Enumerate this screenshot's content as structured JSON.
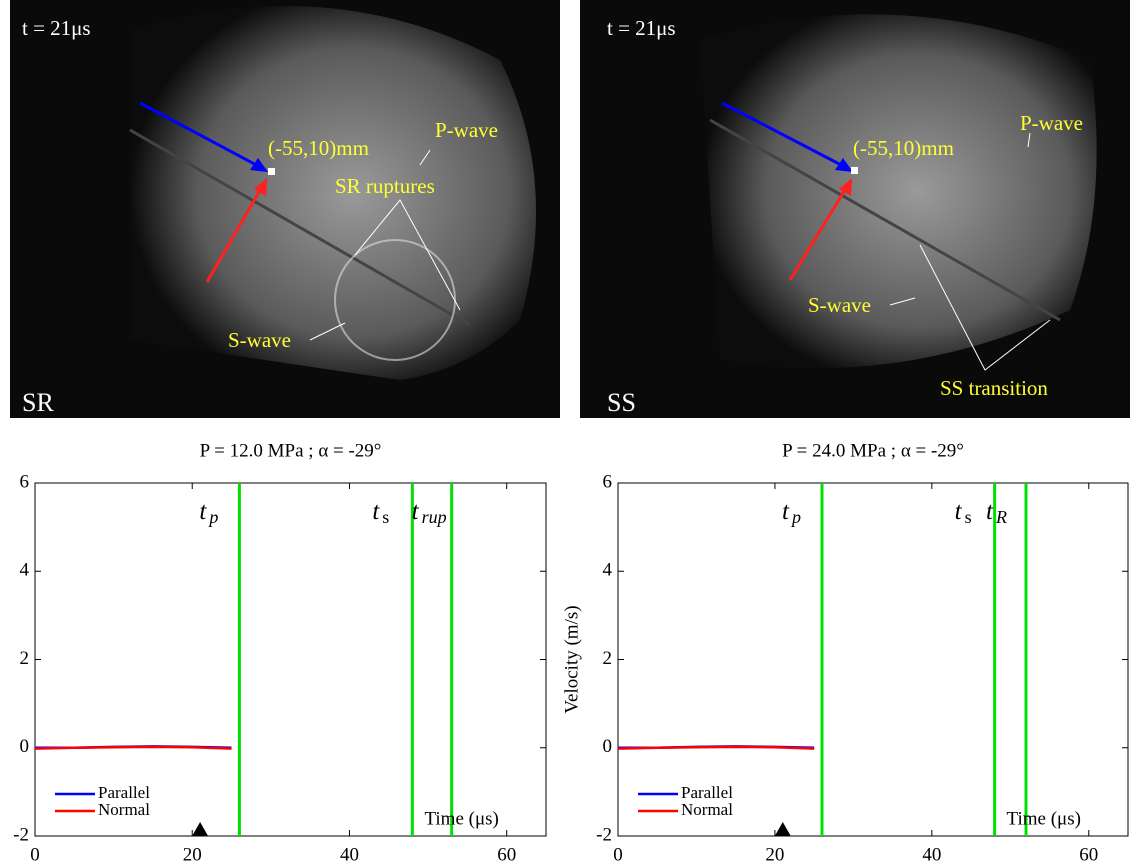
{
  "images": [
    {
      "labels": [
        "t = 21μs",
        "(-55,10)mm",
        "P-wave",
        "SR ruptures",
        "S-wave",
        "SR"
      ]
    },
    {
      "labels": [
        "t = 21μs",
        "(-55,10)mm",
        "P-wave",
        "S-wave",
        "SS transition",
        "SS"
      ]
    }
  ],
  "chart_data": [
    {
      "type": "line",
      "title": "P = 12.0 MPa ; α = -29°",
      "xlabel": "Time (μs)",
      "x": [
        0,
        5,
        10,
        15,
        20,
        25
      ],
      "series": [
        {
          "name": "Parallel",
          "color": "#0000ff",
          "values": [
            0,
            0,
            0.02,
            0.03,
            0.02,
            0
          ]
        },
        {
          "name": "Normal",
          "color": "#ff0000",
          "values": [
            -0.02,
            0,
            0.01,
            0.02,
            0.01,
            -0.02
          ]
        }
      ],
      "xlim": [
        0,
        65
      ],
      "ylim": [
        -2,
        6
      ],
      "xticks": [
        0,
        20,
        40,
        60
      ],
      "yticks": [
        -2,
        0,
        2,
        4,
        6
      ],
      "legend": "lower left",
      "line_color": "#00e000",
      "vlines": [
        {
          "x": 26,
          "label": "t",
          "sub": "p"
        },
        {
          "x": 48,
          "label": "t",
          "sub": "s"
        },
        {
          "x": 53,
          "label": "t",
          "sub": "rup"
        }
      ],
      "marker_x": 21
    },
    {
      "type": "line",
      "title": "P = 24.0 MPa ; α = -29°",
      "xlabel": "Time (μs)",
      "ylabel": "Velocity (m/s)",
      "x": [
        0,
        5,
        10,
        15,
        20,
        25
      ],
      "series": [
        {
          "name": "Parallel",
          "color": "#0000ff",
          "values": [
            0,
            0,
            0.02,
            0.03,
            0.02,
            0
          ]
        },
        {
          "name": "Normal",
          "color": "#ff0000",
          "values": [
            -0.02,
            0,
            0.01,
            0.02,
            0.01,
            -0.02
          ]
        }
      ],
      "xlim": [
        0,
        65
      ],
      "ylim": [
        -2,
        6
      ],
      "xticks": [
        0,
        20,
        40,
        60
      ],
      "yticks": [
        -2,
        0,
        2,
        4,
        6
      ],
      "legend": "lower left",
      "line_color": "#00e000",
      "vlines": [
        {
          "x": 26,
          "label": "t",
          "sub": "p"
        },
        {
          "x": 48,
          "label": "t",
          "sub": "s"
        },
        {
          "x": 52,
          "label": "t",
          "sub": "R"
        }
      ],
      "marker_x": 21
    }
  ]
}
